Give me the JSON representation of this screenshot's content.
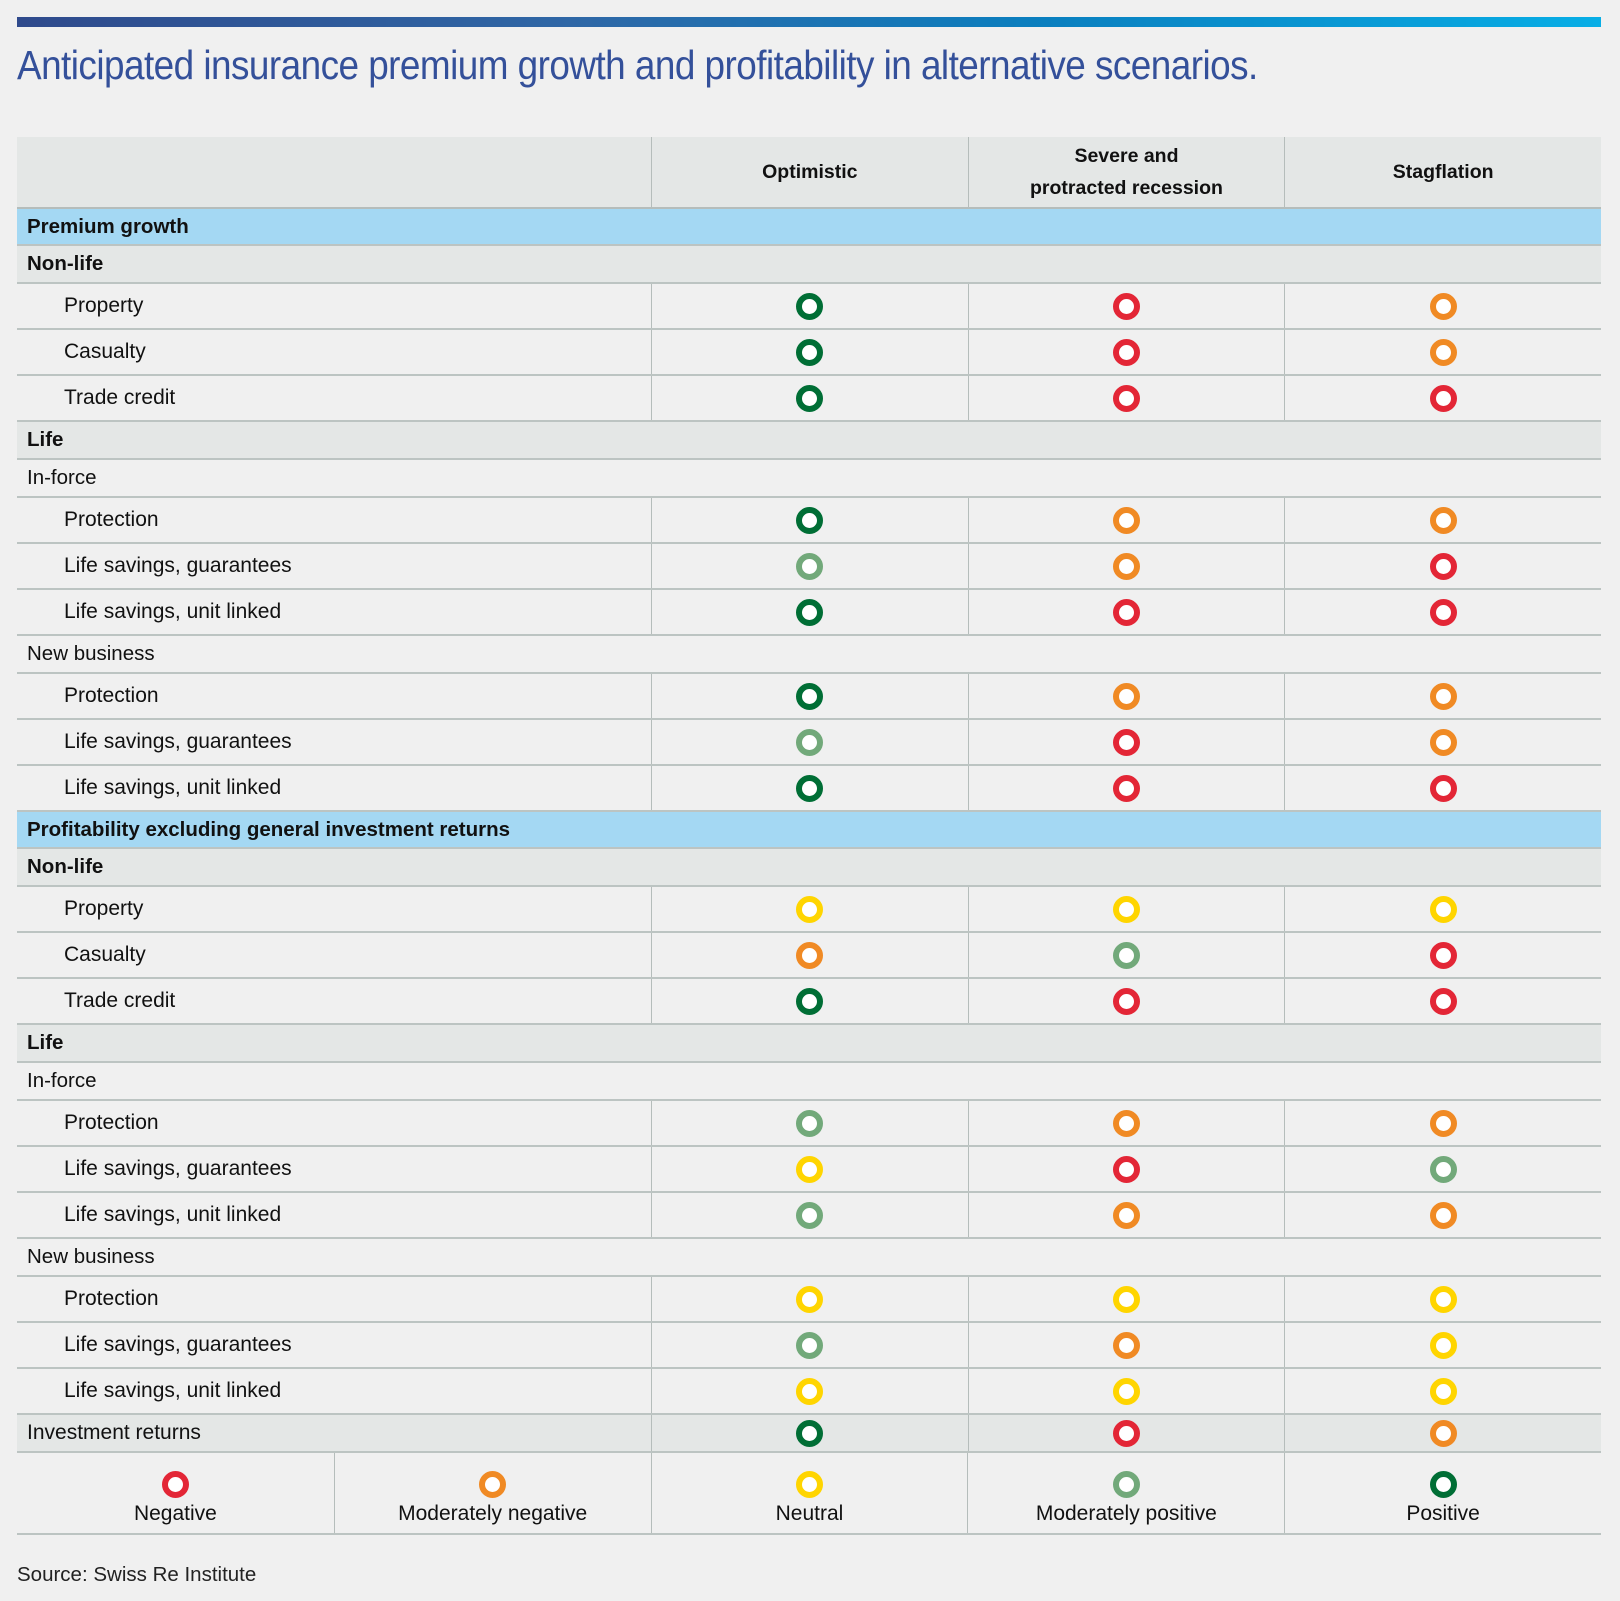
{
  "title": "Anticipated insurance premium growth and profitability in alternative scenarios.",
  "columns": [
    "Optimistic",
    "Severe and\nprotracted recession",
    "Stagflation"
  ],
  "ratings": {
    "negative": {
      "label": "Negative",
      "color": "#e32636"
    },
    "moderately_negative": {
      "label": "Moderately negative",
      "color": "#f08a24"
    },
    "neutral": {
      "label": "Neutral",
      "color": "#ffd500"
    },
    "moderately_positive": {
      "label": "Moderately positive",
      "color": "#72a97a"
    },
    "positive": {
      "label": "Positive",
      "color": "#006e35"
    }
  },
  "rows": [
    {
      "type": "section",
      "label": "Premium growth"
    },
    {
      "type": "group",
      "label": "Non-life"
    },
    {
      "type": "data",
      "label": "Property",
      "values": [
        "positive",
        "negative",
        "moderately_negative"
      ]
    },
    {
      "type": "data",
      "label": "Casualty",
      "values": [
        "positive",
        "negative",
        "moderately_negative"
      ]
    },
    {
      "type": "data",
      "label": "Trade credit",
      "values": [
        "positive",
        "negative",
        "negative"
      ]
    },
    {
      "type": "group",
      "label": "Life"
    },
    {
      "type": "subgroup",
      "label": "In-force"
    },
    {
      "type": "data",
      "label": "Protection",
      "values": [
        "positive",
        "moderately_negative",
        "moderately_negative"
      ]
    },
    {
      "type": "data",
      "label": "Life savings, guarantees",
      "values": [
        "moderately_positive",
        "moderately_negative",
        "negative"
      ]
    },
    {
      "type": "data",
      "label": "Life savings, unit linked",
      "values": [
        "positive",
        "negative",
        "negative"
      ]
    },
    {
      "type": "subgroup",
      "label": "New business"
    },
    {
      "type": "data",
      "label": "Protection",
      "values": [
        "positive",
        "moderately_negative",
        "moderately_negative"
      ]
    },
    {
      "type": "data",
      "label": "Life savings, guarantees",
      "values": [
        "moderately_positive",
        "negative",
        "moderately_negative"
      ]
    },
    {
      "type": "data",
      "label": "Life savings, unit linked",
      "values": [
        "positive",
        "negative",
        "negative"
      ]
    },
    {
      "type": "section",
      "label": "Profitability excluding general investment returns"
    },
    {
      "type": "group",
      "label": "Non-life"
    },
    {
      "type": "data",
      "label": "Property",
      "values": [
        "neutral",
        "neutral",
        "neutral"
      ]
    },
    {
      "type": "data",
      "label": "Casualty",
      "values": [
        "moderately_negative",
        "moderately_positive",
        "negative"
      ]
    },
    {
      "type": "data",
      "label": "Trade credit",
      "values": [
        "positive",
        "negative",
        "negative"
      ]
    },
    {
      "type": "group",
      "label": "Life"
    },
    {
      "type": "subgroup",
      "label": "In-force"
    },
    {
      "type": "data",
      "label": "Protection",
      "values": [
        "moderately_positive",
        "moderately_negative",
        "moderately_negative"
      ]
    },
    {
      "type": "data",
      "label": "Life savings, guarantees",
      "values": [
        "neutral",
        "negative",
        "moderately_positive"
      ]
    },
    {
      "type": "data",
      "label": "Life savings, unit linked",
      "values": [
        "moderately_positive",
        "moderately_negative",
        "moderately_negative"
      ]
    },
    {
      "type": "subgroup",
      "label": "New business"
    },
    {
      "type": "data",
      "label": "Protection",
      "values": [
        "neutral",
        "neutral",
        "neutral"
      ]
    },
    {
      "type": "data",
      "label": "Life savings, guarantees",
      "values": [
        "moderately_positive",
        "moderately_negative",
        "neutral"
      ]
    },
    {
      "type": "data",
      "label": "Life savings, unit linked",
      "values": [
        "neutral",
        "neutral",
        "neutral"
      ]
    },
    {
      "type": "inv",
      "label": "Investment returns",
      "values": [
        "positive",
        "negative",
        "moderately_negative"
      ]
    }
  ],
  "legend": [
    "negative",
    "moderately_negative",
    "neutral",
    "moderately_positive",
    "positive"
  ],
  "source": "Source: Swiss Re Institute"
}
